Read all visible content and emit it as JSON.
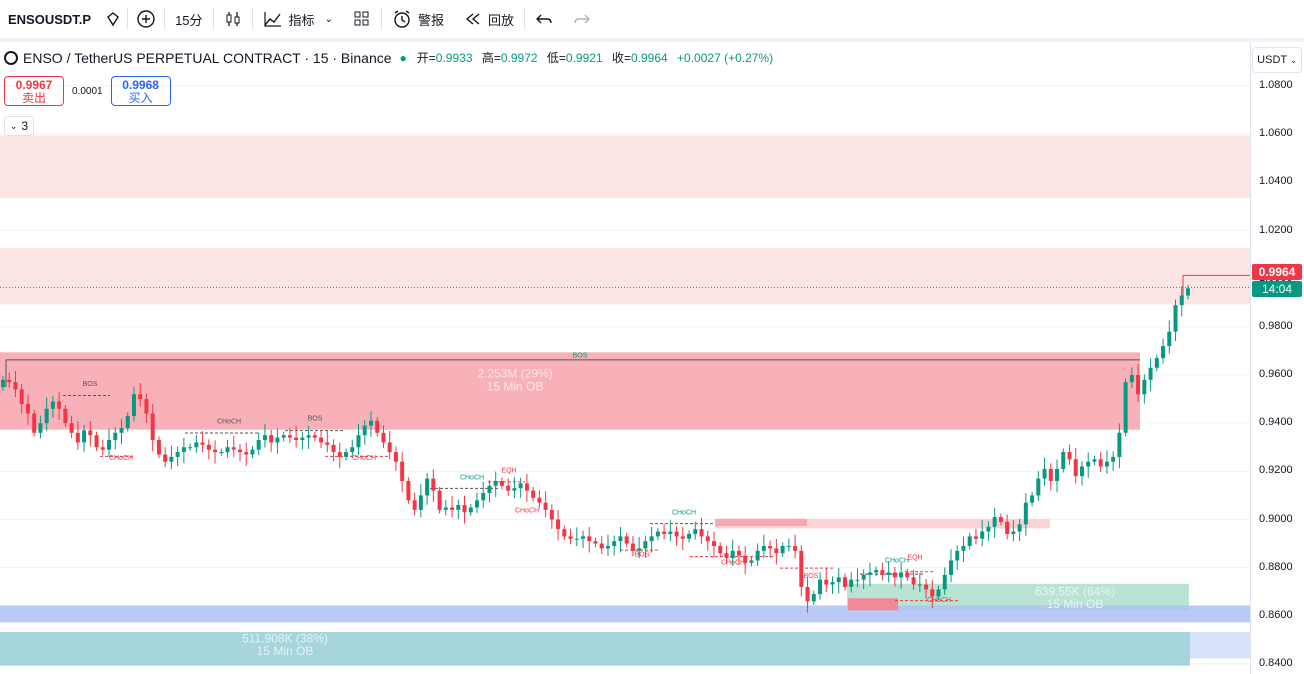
{
  "toolbar": {
    "symbol": "ENSOUSDT.P",
    "interval": "15分",
    "indicators": "指标",
    "alerts": "警报",
    "replay": "回放"
  },
  "legend": {
    "title": "ENSO / TetherUS PERPETUAL CONTRACT · 15 · Binance",
    "open_label": "开=",
    "open": "0.9933",
    "high_label": "高=",
    "high": "0.9972",
    "low_label": "低=",
    "low": "0.9921",
    "close_label": "收=",
    "close": "0.9964",
    "change": "+0.0027 (+0.27%)"
  },
  "trade": {
    "sell_price": "0.9967",
    "sell_label": "卖出",
    "spread": "0.0001",
    "buy_price": "0.9968",
    "buy_label": "买入"
  },
  "collapse_count": "3",
  "currency": "USDT",
  "axis_labels": [
    "1.0800",
    "1.0600",
    "1.0400",
    "1.0200",
    "1.0000",
    "0.9800",
    "0.9600",
    "0.9400",
    "0.9200",
    "0.9000",
    "0.8800",
    "0.8600",
    "0.8400"
  ],
  "last_price": "0.9964",
  "countdown": "14:04",
  "zones": {
    "upper_ob_label": "2.253M (29%)",
    "upper_ob_tf": "15 Min OB",
    "mid_ob_label": "639.55K (64%)",
    "mid_ob_tf": "15 Min OB",
    "lower_ob_label": "511.908K (38%)",
    "lower_ob_tf": "15 Min OB"
  },
  "structure_labels": [
    "BOS",
    "BOS",
    "CHoCH",
    "CHoCH",
    "BOS",
    "CHoCH",
    "CHoCH",
    "EQH",
    "CHoCH",
    "CHoCH",
    "BOS",
    "CHoCH",
    "BOS",
    "CHoCH",
    "EQH",
    "CHoCH"
  ],
  "colors": {
    "up": "#089981",
    "down": "#f23645",
    "sell": "#f23645",
    "buy": "#2962ff",
    "upper_zone": "#f7a8b0",
    "supply_zone": "#fde0e2",
    "demand_zone": "#a6d5de",
    "blue_zone": "#aebff5"
  },
  "chart_data": {
    "type": "candlestick",
    "title": "ENSO / TetherUS PERPETUAL CONTRACT · 15 · Binance",
    "ylim": [
      0.835,
      1.092
    ],
    "series": [
      {
        "values": [
          0.958,
          0.957,
          0.954,
          0.948,
          0.944,
          0.936,
          0.94,
          0.946,
          0.949,
          0.946,
          0.94,
          0.936,
          0.932,
          0.937,
          0.935,
          0.93,
          0.929,
          0.933,
          0.936,
          0.938,
          0.943,
          0.952,
          0.95,
          0.944,
          0.933,
          0.927,
          0.924,
          0.926,
          0.928,
          0.93,
          0.93,
          0.932,
          0.931,
          0.929,
          0.928,
          0.928,
          0.93,
          0.929,
          0.928,
          0.927,
          0.929,
          0.933,
          0.935,
          0.932,
          0.934,
          0.935,
          0.934,
          0.933,
          0.934,
          0.935,
          0.934,
          0.932,
          0.931,
          0.928,
          0.926,
          0.928,
          0.93,
          0.935,
          0.939,
          0.941,
          0.936,
          0.932,
          0.928,
          0.924,
          0.916,
          0.908,
          0.904,
          0.91,
          0.917,
          0.912,
          0.904,
          0.905,
          0.904,
          0.906,
          0.903,
          0.905,
          0.908,
          0.911,
          0.914,
          0.916,
          0.914,
          0.912,
          0.913,
          0.915,
          0.912,
          0.909,
          0.907,
          0.904,
          0.9,
          0.896,
          0.893,
          0.892,
          0.892,
          0.893,
          0.891,
          0.89,
          0.888,
          0.889,
          0.891,
          0.893,
          0.89,
          0.887,
          0.888,
          0.891,
          0.893,
          0.895,
          0.894,
          0.895,
          0.893,
          0.892,
          0.894,
          0.896,
          0.893,
          0.891,
          0.889,
          0.886,
          0.884,
          0.887,
          0.885,
          0.882,
          0.883,
          0.887,
          0.889,
          0.888,
          0.886,
          0.889,
          0.889,
          0.887,
          0.872,
          0.866,
          0.869,
          0.875,
          0.873,
          0.874,
          0.876,
          0.872,
          0.875,
          0.875,
          0.877,
          0.878,
          0.879,
          0.877,
          0.878,
          0.876,
          0.878,
          0.876,
          0.873,
          0.873,
          0.871,
          0.868,
          0.871,
          0.877,
          0.883,
          0.887,
          0.889,
          0.893,
          0.892,
          0.895,
          0.897,
          0.901,
          0.899,
          0.894,
          0.895,
          0.898,
          0.907,
          0.91,
          0.917,
          0.921,
          0.916,
          0.921,
          0.928,
          0.925,
          0.918,
          0.922,
          0.924,
          0.925,
          0.922,
          0.924,
          0.926,
          0.936,
          0.957,
          0.96,
          0.952,
          0.958,
          0.963,
          0.967,
          0.972,
          0.978,
          0.989,
          0.993,
          0.996
        ]
      }
    ]
  }
}
